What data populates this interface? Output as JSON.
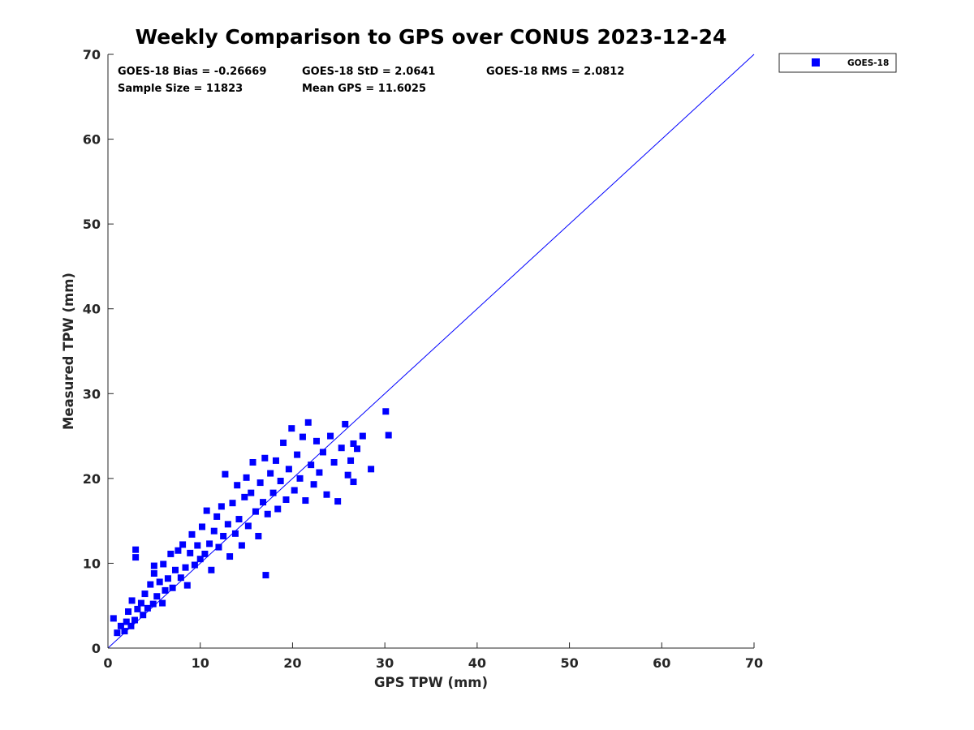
{
  "chart_data": {
    "type": "scatter",
    "title": "Weekly Comparison to GPS over CONUS 2023-12-24",
    "xlabel": "GPS TPW (mm)",
    "ylabel": "Measured TPW (mm)",
    "xlim": [
      0,
      70
    ],
    "ylim": [
      0,
      70
    ],
    "xticks": [
      "0",
      "10",
      "20",
      "30",
      "40",
      "50",
      "60",
      "70"
    ],
    "yticks": [
      "0",
      "10",
      "20",
      "30",
      "40",
      "50",
      "60",
      "70"
    ],
    "grid": false,
    "legend_position": "outside-top-right",
    "series": [
      {
        "name": "GOES-18",
        "color": "#0000ff",
        "marker": "square",
        "points": [
          [
            0.6,
            3.5
          ],
          [
            1.0,
            1.8
          ],
          [
            1.4,
            2.6
          ],
          [
            1.8,
            2.0
          ],
          [
            2.0,
            3.1
          ],
          [
            2.2,
            4.3
          ],
          [
            2.5,
            2.6
          ],
          [
            2.6,
            5.6
          ],
          [
            2.9,
            3.3
          ],
          [
            3.0,
            11.6
          ],
          [
            3.0,
            10.7
          ],
          [
            3.2,
            4.6
          ],
          [
            3.6,
            5.3
          ],
          [
            3.8,
            3.9
          ],
          [
            4.0,
            6.4
          ],
          [
            4.3,
            4.7
          ],
          [
            4.6,
            7.5
          ],
          [
            4.9,
            5.2
          ],
          [
            5.0,
            8.8
          ],
          [
            5.0,
            9.7
          ],
          [
            5.3,
            6.1
          ],
          [
            5.6,
            7.8
          ],
          [
            5.9,
            5.3
          ],
          [
            6.0,
            9.9
          ],
          [
            6.2,
            6.8
          ],
          [
            6.5,
            8.2
          ],
          [
            6.8,
            11.1
          ],
          [
            7.0,
            7.1
          ],
          [
            7.3,
            9.2
          ],
          [
            7.6,
            11.5
          ],
          [
            7.9,
            8.3
          ],
          [
            8.1,
            12.2
          ],
          [
            8.4,
            9.5
          ],
          [
            8.6,
            7.4
          ],
          [
            8.9,
            11.2
          ],
          [
            9.1,
            13.4
          ],
          [
            9.4,
            9.8
          ],
          [
            9.7,
            12.1
          ],
          [
            10.0,
            10.5
          ],
          [
            10.2,
            14.3
          ],
          [
            10.5,
            11.1
          ],
          [
            10.7,
            16.2
          ],
          [
            11.0,
            12.3
          ],
          [
            11.2,
            9.2
          ],
          [
            11.5,
            13.8
          ],
          [
            11.8,
            15.5
          ],
          [
            12.0,
            11.9
          ],
          [
            12.3,
            16.7
          ],
          [
            12.5,
            13.2
          ],
          [
            12.7,
            20.5
          ],
          [
            13.0,
            14.6
          ],
          [
            13.2,
            10.8
          ],
          [
            13.5,
            17.1
          ],
          [
            13.8,
            13.5
          ],
          [
            14.0,
            19.2
          ],
          [
            14.2,
            15.2
          ],
          [
            14.5,
            12.1
          ],
          [
            14.8,
            17.8
          ],
          [
            15.0,
            20.1
          ],
          [
            15.2,
            14.4
          ],
          [
            15.5,
            18.3
          ],
          [
            15.7,
            21.9
          ],
          [
            16.0,
            16.1
          ],
          [
            16.3,
            13.2
          ],
          [
            16.5,
            19.5
          ],
          [
            16.8,
            17.2
          ],
          [
            17.0,
            22.4
          ],
          [
            17.1,
            8.6
          ],
          [
            17.3,
            15.8
          ],
          [
            17.6,
            20.6
          ],
          [
            17.9,
            18.3
          ],
          [
            18.2,
            22.1
          ],
          [
            18.4,
            16.4
          ],
          [
            18.7,
            19.7
          ],
          [
            19.0,
            24.2
          ],
          [
            19.3,
            17.5
          ],
          [
            19.6,
            21.1
          ],
          [
            19.9,
            25.9
          ],
          [
            20.2,
            18.6
          ],
          [
            20.5,
            22.8
          ],
          [
            20.8,
            20.0
          ],
          [
            21.1,
            24.9
          ],
          [
            21.4,
            17.4
          ],
          [
            21.7,
            26.6
          ],
          [
            22.0,
            21.6
          ],
          [
            22.3,
            19.3
          ],
          [
            22.6,
            24.4
          ],
          [
            22.9,
            20.7
          ],
          [
            23.3,
            23.1
          ],
          [
            23.7,
            18.1
          ],
          [
            24.1,
            25.0
          ],
          [
            24.5,
            21.9
          ],
          [
            24.9,
            17.3
          ],
          [
            25.3,
            23.6
          ],
          [
            25.7,
            26.4
          ],
          [
            26.0,
            20.4
          ],
          [
            26.3,
            22.1
          ],
          [
            26.6,
            24.1
          ],
          [
            26.6,
            19.6
          ],
          [
            27.0,
            23.5
          ],
          [
            27.6,
            25.0
          ],
          [
            28.5,
            21.1
          ],
          [
            30.1,
            27.9
          ],
          [
            30.4,
            25.1
          ]
        ]
      }
    ],
    "reference_line": {
      "name": "1:1 line",
      "from": [
        0,
        0
      ],
      "to": [
        70,
        70
      ],
      "color": "#0000ff"
    },
    "annotations": {
      "bias": "GOES-18 Bias = -0.26669",
      "std": "GOES-18 StD = 2.0641",
      "rms": "GOES-18 RMS = 2.0812",
      "sample_size": "Sample Size = 11823",
      "mean_gps": "Mean GPS = 11.6025"
    },
    "legend_label": "GOES-18"
  }
}
